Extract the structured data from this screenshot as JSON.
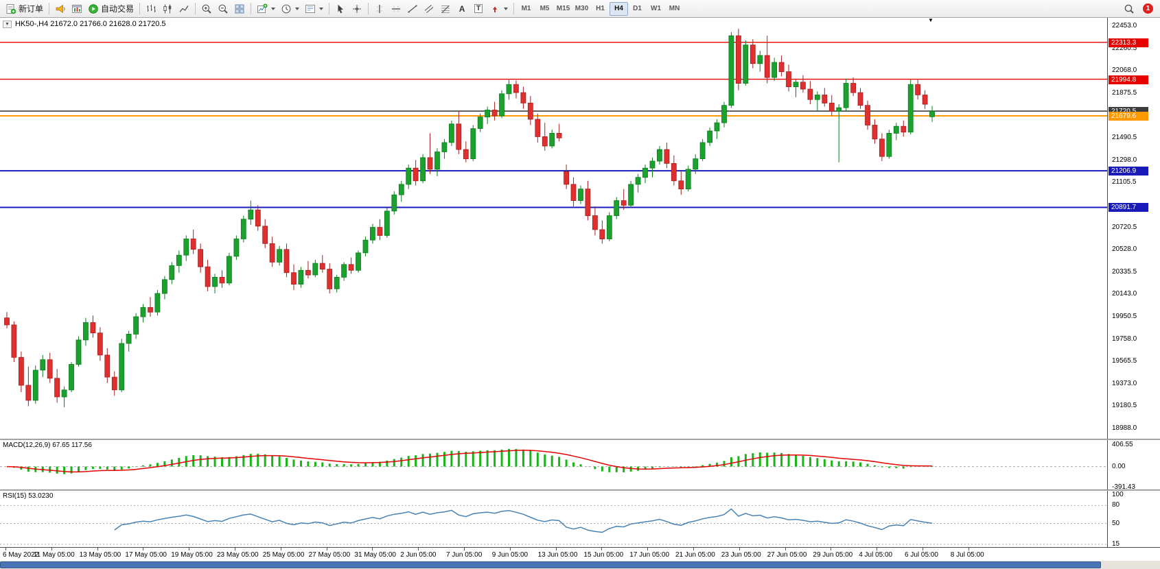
{
  "toolbar": {
    "new_order_label": "新订单",
    "autotrading_label": "自动交易",
    "timeframes": [
      "M1",
      "M5",
      "M15",
      "M30",
      "H1",
      "H4",
      "D1",
      "W1",
      "MN"
    ],
    "active_timeframe": "H4",
    "notification_count": "1"
  },
  "chart": {
    "header": "HK50-,H4 21672.0 21766.0 21628.0 21720.5",
    "symbol": "HK50-",
    "timeframe": "H4",
    "open": "21672.0",
    "high": "21766.0",
    "low": "21628.0",
    "close": "21720.5"
  },
  "icons": {
    "collapse": "▼",
    "shift_marker": "▼",
    "text_tool": "A",
    "text_label_tool": "T",
    "new_order": "order-form-plus",
    "announcement": "horn",
    "chart_window": "mini-candle-window",
    "autotrading": "green-play-circle",
    "bar_chart": "ohlc-bars",
    "candlestick_chart": "candles",
    "line_chart": "polyline",
    "zoom_in": "magnifier-plus",
    "zoom_out": "magnifier-minus",
    "tile_windows": "window-grid",
    "new_chart": "chart-plus",
    "periods": "clock",
    "templates": "template-sheet",
    "cursor": "arrow-pointer",
    "crosshair": "cross",
    "vertical_line": "v-line",
    "horizontal_line": "h-line",
    "trendline": "diagonal-line",
    "channel": "parallel-lines",
    "fibonacci": "fibo-retracement",
    "arrows_tool": "arrow-marker",
    "search": "magnifier",
    "notification": "red-badge"
  },
  "chart_data": {
    "type": "candlestick",
    "symbol": "HK50-",
    "period": "H4",
    "y_axis": {
      "max": 22453.0,
      "min": 18988.0,
      "step": 192.5,
      "labels": [
        "22453.0",
        "22260.5",
        "22068.0",
        "21875.5",
        "21490.5",
        "21298.0",
        "21105.5",
        "20720.5",
        "20528.0",
        "20335.5",
        "20143.0",
        "19950.5",
        "19758.0",
        "19565.5",
        "19373.0",
        "19180.5",
        "18988.0"
      ]
    },
    "x_axis": {
      "labels": [
        "6 May 2022",
        "11 May 05:00",
        "13 May 05:00",
        "17 May 05:00",
        "19 May 05:00",
        "23 May 05:00",
        "25 May 05:00",
        "27 May 05:00",
        "31 May 05:00",
        "2 Jun 05:00",
        "7 Jun 05:00",
        "9 Jun 05:00",
        "13 Jun 05:00",
        "15 Jun 05:00",
        "17 Jun 05:00",
        "21 Jun 05:00",
        "23 Jun 05:00",
        "27 Jun 05:00",
        "29 Jun 05:00",
        "4 Jul 05:00",
        "6 Jul 05:00",
        "8 Jul 05:00"
      ]
    },
    "hlines": [
      {
        "price": 22313.3,
        "color": "#e60000",
        "width": 1.4
      },
      {
        "price": 21994.8,
        "color": "#e60000",
        "width": 1.4
      },
      {
        "price": 21720.5,
        "color": "#3c3c3c",
        "width": 1.6
      },
      {
        "price": 21679.6,
        "color": "#ff9900",
        "width": 2
      },
      {
        "price": 21206.9,
        "color": "#1a1ab8",
        "width": 2
      },
      {
        "price": 20891.7,
        "color": "#1a1ab8",
        "width": 2
      }
    ],
    "price_tags": [
      {
        "value": "22313.3",
        "price": 22313.3,
        "color": "#e60000"
      },
      {
        "value": "21994.8",
        "price": 21994.8,
        "color": "#e60000"
      },
      {
        "value": "21720.5",
        "price": 21720.5,
        "color": "#3c3c3c"
      },
      {
        "value": "21679.6",
        "price": 21679.6,
        "color": "#ff9900"
      },
      {
        "value": "21206.9",
        "price": 21206.9,
        "color": "#1a1ab8"
      },
      {
        "value": "20891.7",
        "price": 20891.7,
        "color": "#1a1ab8"
      }
    ],
    "colors": {
      "bull": "#1ba12e",
      "bull_border": "#0c7d1d",
      "bear": "#e02f2f",
      "bear_border": "#a32020",
      "macd_histogram": "#17b517",
      "macd_signal": "#e60000",
      "rsi_line": "#4682b4",
      "level_dash": "#a8a8a8"
    },
    "candles": [
      [
        19940,
        19990,
        19850,
        19880
      ],
      [
        19880,
        19910,
        19560,
        19600
      ],
      [
        19600,
        19650,
        19300,
        19360
      ],
      [
        19360,
        19520,
        19180,
        19230
      ],
      [
        19230,
        19530,
        19200,
        19490
      ],
      [
        19490,
        19620,
        19430,
        19580
      ],
      [
        19580,
        19640,
        19380,
        19420
      ],
      [
        19420,
        19500,
        19210,
        19260
      ],
      [
        19260,
        19350,
        19170,
        19320
      ],
      [
        19320,
        19560,
        19300,
        19540
      ],
      [
        19540,
        19780,
        19520,
        19750
      ],
      [
        19750,
        19940,
        19700,
        19900
      ],
      [
        19900,
        19960,
        19770,
        19810
      ],
      [
        19810,
        19860,
        19570,
        19620
      ],
      [
        19620,
        19680,
        19380,
        19430
      ],
      [
        19430,
        19480,
        19270,
        19320
      ],
      [
        19320,
        19760,
        19300,
        19720
      ],
      [
        19720,
        19830,
        19650,
        19800
      ],
      [
        19800,
        19980,
        19760,
        19950
      ],
      [
        19950,
        20060,
        19900,
        20030
      ],
      [
        20030,
        20120,
        19950,
        19990
      ],
      [
        19990,
        20180,
        19960,
        20150
      ],
      [
        20150,
        20300,
        20100,
        20270
      ],
      [
        20270,
        20420,
        20230,
        20390
      ],
      [
        20390,
        20520,
        20330,
        20480
      ],
      [
        20480,
        20650,
        20430,
        20620
      ],
      [
        20620,
        20700,
        20490,
        20530
      ],
      [
        20530,
        20580,
        20330,
        20380
      ],
      [
        20380,
        20440,
        20170,
        20210
      ],
      [
        20210,
        20320,
        20150,
        20290
      ],
      [
        20290,
        20350,
        20200,
        20240
      ],
      [
        20240,
        20500,
        20220,
        20470
      ],
      [
        20470,
        20650,
        20440,
        20620
      ],
      [
        20620,
        20820,
        20590,
        20790
      ],
      [
        20790,
        20950,
        20740,
        20870
      ],
      [
        20870,
        20910,
        20690,
        20730
      ],
      [
        20730,
        20790,
        20540,
        20580
      ],
      [
        20580,
        20640,
        20380,
        20420
      ],
      [
        20420,
        20560,
        20390,
        20530
      ],
      [
        20530,
        20580,
        20290,
        20330
      ],
      [
        20330,
        20400,
        20180,
        20230
      ],
      [
        20230,
        20380,
        20200,
        20350
      ],
      [
        20350,
        20430,
        20280,
        20310
      ],
      [
        20310,
        20440,
        20290,
        20410
      ],
      [
        20410,
        20480,
        20330,
        20360
      ],
      [
        20360,
        20410,
        20150,
        20190
      ],
      [
        20190,
        20310,
        20160,
        20290
      ],
      [
        20290,
        20420,
        20260,
        20400
      ],
      [
        20400,
        20460,
        20320,
        20350
      ],
      [
        20350,
        20520,
        20330,
        20500
      ],
      [
        20500,
        20640,
        20470,
        20610
      ],
      [
        20610,
        20750,
        20580,
        20720
      ],
      [
        20720,
        20790,
        20610,
        20650
      ],
      [
        20650,
        20890,
        20630,
        20860
      ],
      [
        20860,
        21030,
        20830,
        21000
      ],
      [
        21000,
        21120,
        20940,
        21090
      ],
      [
        21090,
        21260,
        21050,
        21230
      ],
      [
        21230,
        21300,
        21080,
        21120
      ],
      [
        21120,
        21350,
        21100,
        21320
      ],
      [
        21320,
        21530,
        21180,
        21220
      ],
      [
        21220,
        21400,
        21160,
        21370
      ],
      [
        21370,
        21480,
        21310,
        21450
      ],
      [
        21450,
        21640,
        21420,
        21610
      ],
      [
        21610,
        21720,
        21350,
        21390
      ],
      [
        21390,
        21460,
        21280,
        21310
      ],
      [
        21310,
        21600,
        21290,
        21570
      ],
      [
        21570,
        21700,
        21540,
        21670
      ],
      [
        21670,
        21760,
        21610,
        21730
      ],
      [
        21730,
        21800,
        21640,
        21680
      ],
      [
        21680,
        21900,
        21660,
        21870
      ],
      [
        21870,
        21990,
        21820,
        21950
      ],
      [
        21950,
        21985,
        21830,
        21880
      ],
      [
        21880,
        21930,
        21740,
        21790
      ],
      [
        21790,
        21850,
        21600,
        21650
      ],
      [
        21650,
        21700,
        21450,
        21500
      ],
      [
        21500,
        21620,
        21380,
        21420
      ],
      [
        21420,
        21560,
        21400,
        21530
      ],
      [
        21530,
        21610,
        21460,
        21490
      ],
      [
        21200,
        21260,
        21050,
        21090
      ],
      [
        21090,
        21150,
        20900,
        20950
      ],
      [
        20950,
        21080,
        20920,
        21050
      ],
      [
        21050,
        21120,
        20780,
        20820
      ],
      [
        20820,
        20900,
        20650,
        20700
      ],
      [
        20700,
        20780,
        20580,
        20620
      ],
      [
        20620,
        20850,
        20600,
        20820
      ],
      [
        20820,
        20980,
        20790,
        20950
      ],
      [
        20950,
        21050,
        20870,
        20910
      ],
      [
        20910,
        21120,
        20890,
        21090
      ],
      [
        21090,
        21180,
        21020,
        21150
      ],
      [
        21150,
        21260,
        21100,
        21230
      ],
      [
        21230,
        21320,
        21150,
        21290
      ],
      [
        21290,
        21420,
        21260,
        21390
      ],
      [
        21390,
        21450,
        21230,
        21270
      ],
      [
        21270,
        21340,
        21080,
        21120
      ],
      [
        21120,
        21200,
        21000,
        21050
      ],
      [
        21050,
        21250,
        21030,
        21220
      ],
      [
        21220,
        21350,
        21180,
        21310
      ],
      [
        21310,
        21480,
        21290,
        21450
      ],
      [
        21450,
        21580,
        21420,
        21550
      ],
      [
        21550,
        21650,
        21480,
        21620
      ],
      [
        21620,
        21800,
        21580,
        21770
      ],
      [
        21770,
        22400,
        21750,
        22370
      ],
      [
        22370,
        22430,
        21900,
        21960
      ],
      [
        21960,
        22330,
        21940,
        22290
      ],
      [
        22290,
        22340,
        22090,
        22130
      ],
      [
        22130,
        22240,
        22060,
        22200
      ],
      [
        22200,
        22370,
        21960,
        22010
      ],
      [
        22010,
        22180,
        21980,
        22140
      ],
      [
        22140,
        22200,
        22020,
        22060
      ],
      [
        22060,
        22120,
        21890,
        21930
      ],
      [
        21930,
        22000,
        21840,
        21970
      ],
      [
        21970,
        22030,
        21880,
        21910
      ],
      [
        21910,
        21980,
        21780,
        21820
      ],
      [
        21820,
        21890,
        21720,
        21860
      ],
      [
        21860,
        21920,
        21760,
        21790
      ],
      [
        21790,
        21860,
        21680,
        21720
      ],
      [
        21720,
        21780,
        21280,
        21750
      ],
      [
        21750,
        22000,
        21720,
        21960
      ],
      [
        21960,
        22010,
        21850,
        21880
      ],
      [
        21880,
        21920,
        21740,
        21770
      ],
      [
        21770,
        21810,
        21560,
        21600
      ],
      [
        21600,
        21650,
        21440,
        21480
      ],
      [
        21480,
        21530,
        21290,
        21330
      ],
      [
        21330,
        21560,
        21310,
        21530
      ],
      [
        21530,
        21620,
        21470,
        21590
      ],
      [
        21590,
        21640,
        21500,
        21540
      ],
      [
        21540,
        21990,
        21520,
        21950
      ],
      [
        21950,
        21990,
        21820,
        21860
      ],
      [
        21860,
        21900,
        21740,
        21780
      ],
      [
        21672,
        21766,
        21628,
        21720.5
      ]
    ],
    "indicators": {
      "macd": {
        "name": "MACD(12,26,9)",
        "values": "67.65 117.56",
        "fast": 12,
        "slow": 26,
        "signal": 9,
        "axis_labels": [
          "406.55",
          "0.00",
          "-391.43"
        ],
        "max": 406.55,
        "min": -391.43
      },
      "rsi": {
        "name": "RSI(15)",
        "value": "53.0230",
        "period": 15,
        "axis_labels": [
          "100",
          "80",
          "50",
          "15"
        ],
        "levels": [
          80,
          50,
          15
        ],
        "max": 100,
        "min": 15
      }
    }
  }
}
